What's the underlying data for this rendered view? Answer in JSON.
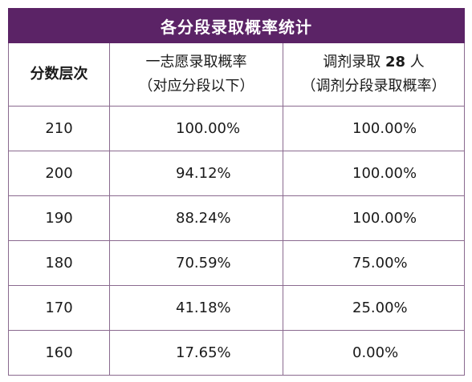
{
  "table": {
    "title": "各分段录取概率统计",
    "headers": {
      "col1": "分数层次",
      "col2_line1": "一志愿录取概率",
      "col2_line2": "（对应分段以下）",
      "col3_line1_prefix": "调剂录取 ",
      "col3_line1_number": "28",
      "col3_line1_suffix": " 人",
      "col3_line2": "（调剂分段录取概率）"
    },
    "rows": [
      {
        "level": "210",
        "first_choice": "100.00%",
        "adjusted": "100.00%"
      },
      {
        "level": "200",
        "first_choice": "94.12%",
        "adjusted": "100.00%"
      },
      {
        "level": "190",
        "first_choice": "88.24%",
        "adjusted": "100.00%"
      },
      {
        "level": "180",
        "first_choice": "70.59%",
        "adjusted": "75.00%"
      },
      {
        "level": "170",
        "first_choice": "41.18%",
        "adjusted": "25.00%"
      },
      {
        "level": "160",
        "first_choice": "17.65%",
        "adjusted": "0.00%"
      }
    ]
  },
  "colors": {
    "title_bg": "#5b2366",
    "title_text": "#ffffff",
    "grid": "#8a6a8f"
  }
}
